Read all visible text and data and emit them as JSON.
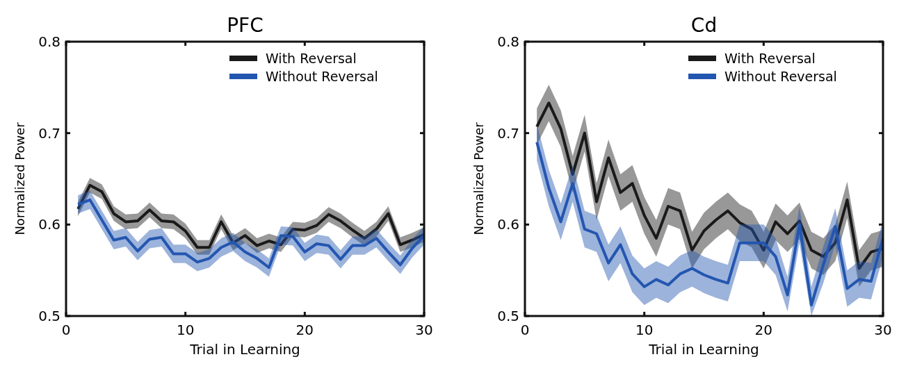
{
  "chart_data": [
    {
      "type": "line",
      "title": "PFC",
      "xlabel": "Trial in Learning",
      "ylabel": "Normalized Power",
      "x": [
        1,
        2,
        3,
        4,
        5,
        6,
        7,
        8,
        9,
        10,
        11,
        12,
        13,
        14,
        15,
        16,
        17,
        18,
        19,
        20,
        21,
        22,
        23,
        24,
        25,
        26,
        27,
        28,
        29,
        30
      ],
      "xlim": [
        0,
        30
      ],
      "xticks": [
        0,
        10,
        20,
        30
      ],
      "ylim": [
        0.5,
        0.8
      ],
      "yticks": [
        0.5,
        0.6,
        0.7,
        0.8
      ],
      "legend": "top right",
      "series": [
        {
          "name": "With Reversal",
          "color": "#1a1a1a",
          "values": [
            0.617,
            0.643,
            0.636,
            0.612,
            0.603,
            0.604,
            0.616,
            0.604,
            0.603,
            0.593,
            0.575,
            0.575,
            0.603,
            0.58,
            0.588,
            0.577,
            0.582,
            0.578,
            0.595,
            0.594,
            0.599,
            0.611,
            0.604,
            0.594,
            0.585,
            0.595,
            0.612,
            0.578,
            0.583,
            0.589
          ],
          "lower": [
            0.609,
            0.635,
            0.628,
            0.604,
            0.595,
            0.596,
            0.608,
            0.596,
            0.595,
            0.585,
            0.567,
            0.567,
            0.595,
            0.572,
            0.58,
            0.569,
            0.574,
            0.57,
            0.587,
            0.586,
            0.591,
            0.603,
            0.596,
            0.586,
            0.577,
            0.587,
            0.604,
            0.57,
            0.575,
            0.581
          ],
          "upper": [
            0.625,
            0.651,
            0.644,
            0.62,
            0.611,
            0.612,
            0.624,
            0.612,
            0.611,
            0.601,
            0.583,
            0.583,
            0.611,
            0.588,
            0.596,
            0.585,
            0.59,
            0.586,
            0.603,
            0.602,
            0.607,
            0.619,
            0.612,
            0.602,
            0.593,
            0.603,
            0.62,
            0.586,
            0.591,
            0.597
          ]
        },
        {
          "name": "Without Reversal",
          "color": "#2356b0",
          "values": [
            0.622,
            0.627,
            0.605,
            0.583,
            0.586,
            0.571,
            0.584,
            0.586,
            0.568,
            0.568,
            0.559,
            0.563,
            0.575,
            0.581,
            0.57,
            0.563,
            0.553,
            0.588,
            0.587,
            0.57,
            0.579,
            0.577,
            0.562,
            0.577,
            0.577,
            0.585,
            0.57,
            0.556,
            0.574,
            0.588
          ],
          "lower": [
            0.612,
            0.617,
            0.595,
            0.573,
            0.576,
            0.561,
            0.574,
            0.576,
            0.558,
            0.558,
            0.549,
            0.553,
            0.565,
            0.571,
            0.56,
            0.553,
            0.543,
            0.578,
            0.577,
            0.56,
            0.569,
            0.567,
            0.552,
            0.567,
            0.567,
            0.575,
            0.56,
            0.546,
            0.564,
            0.578
          ],
          "upper": [
            0.632,
            0.637,
            0.615,
            0.593,
            0.596,
            0.581,
            0.594,
            0.596,
            0.578,
            0.578,
            0.569,
            0.573,
            0.585,
            0.591,
            0.58,
            0.573,
            0.563,
            0.598,
            0.597,
            0.58,
            0.589,
            0.587,
            0.572,
            0.587,
            0.587,
            0.595,
            0.58,
            0.566,
            0.584,
            0.598
          ]
        }
      ]
    },
    {
      "type": "line",
      "title": "Cd",
      "xlabel": "Trial in Learning",
      "ylabel": "Normalized Power",
      "x": [
        1,
        2,
        3,
        4,
        5,
        6,
        7,
        8,
        9,
        10,
        11,
        12,
        13,
        14,
        15,
        16,
        17,
        18,
        19,
        20,
        21,
        22,
        23,
        24,
        25,
        26,
        27,
        28,
        29,
        30
      ],
      "xlim": [
        0,
        30
      ],
      "xticks": [
        0,
        10,
        20,
        30
      ],
      "ylim": [
        0.5,
        0.8
      ],
      "yticks": [
        0.5,
        0.6,
        0.7,
        0.8
      ],
      "legend": "top right",
      "series": [
        {
          "name": "With Reversal",
          "color": "#1a1a1a",
          "values": [
            0.707,
            0.733,
            0.705,
            0.655,
            0.7,
            0.625,
            0.673,
            0.635,
            0.645,
            0.61,
            0.585,
            0.62,
            0.615,
            0.572,
            0.593,
            0.605,
            0.615,
            0.602,
            0.595,
            0.572,
            0.603,
            0.59,
            0.604,
            0.572,
            0.565,
            0.58,
            0.627,
            0.552,
            0.57,
            0.574
          ],
          "lower": [
            0.687,
            0.713,
            0.685,
            0.635,
            0.68,
            0.605,
            0.653,
            0.615,
            0.625,
            0.59,
            0.565,
            0.6,
            0.595,
            0.552,
            0.573,
            0.585,
            0.595,
            0.582,
            0.575,
            0.552,
            0.583,
            0.57,
            0.584,
            0.552,
            0.545,
            0.56,
            0.607,
            0.532,
            0.55,
            0.554
          ],
          "upper": [
            0.727,
            0.753,
            0.725,
            0.675,
            0.72,
            0.645,
            0.693,
            0.655,
            0.665,
            0.63,
            0.605,
            0.64,
            0.635,
            0.592,
            0.613,
            0.625,
            0.635,
            0.622,
            0.615,
            0.592,
            0.623,
            0.61,
            0.624,
            0.592,
            0.585,
            0.6,
            0.647,
            0.572,
            0.59,
            0.594
          ]
        },
        {
          "name": "Without Reversal",
          "color": "#2356b0",
          "values": [
            0.69,
            0.64,
            0.603,
            0.645,
            0.595,
            0.59,
            0.558,
            0.578,
            0.546,
            0.532,
            0.54,
            0.534,
            0.546,
            0.552,
            0.545,
            0.54,
            0.536,
            0.58,
            0.58,
            0.58,
            0.565,
            0.523,
            0.6,
            0.512,
            0.556,
            0.598,
            0.53,
            0.54,
            0.538,
            0.585
          ],
          "lower": [
            0.67,
            0.62,
            0.583,
            0.625,
            0.575,
            0.57,
            0.538,
            0.558,
            0.526,
            0.512,
            0.52,
            0.514,
            0.526,
            0.532,
            0.525,
            0.52,
            0.516,
            0.56,
            0.56,
            0.56,
            0.545,
            0.505,
            0.58,
            0.5,
            0.536,
            0.578,
            0.51,
            0.52,
            0.518,
            0.565
          ],
          "upper": [
            0.71,
            0.66,
            0.623,
            0.665,
            0.615,
            0.61,
            0.578,
            0.598,
            0.566,
            0.552,
            0.56,
            0.554,
            0.566,
            0.572,
            0.565,
            0.56,
            0.556,
            0.6,
            0.6,
            0.6,
            0.585,
            0.543,
            0.62,
            0.532,
            0.576,
            0.618,
            0.55,
            0.56,
            0.558,
            0.605
          ]
        }
      ]
    }
  ]
}
